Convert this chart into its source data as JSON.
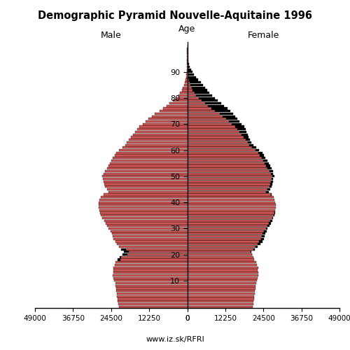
{
  "title": "Demographic Pyramid Nouvelle-Aquitaine 1996",
  "male_label": "Male",
  "female_label": "Female",
  "age_label": "Age",
  "website": "www.iz.sk/RFRI",
  "xlim": 49000,
  "bar_color": "#CC5555",
  "bar_edgecolor": "#000000",
  "background_color": "#ffffff",
  "ages": [
    0,
    1,
    2,
    3,
    4,
    5,
    6,
    7,
    8,
    9,
    10,
    11,
    12,
    13,
    14,
    15,
    16,
    17,
    18,
    19,
    20,
    21,
    22,
    23,
    24,
    25,
    26,
    27,
    28,
    29,
    30,
    31,
    32,
    33,
    34,
    35,
    36,
    37,
    38,
    39,
    40,
    41,
    42,
    43,
    44,
    45,
    46,
    47,
    48,
    49,
    50,
    51,
    52,
    53,
    54,
    55,
    56,
    57,
    58,
    59,
    60,
    61,
    62,
    63,
    64,
    65,
    66,
    67,
    68,
    69,
    70,
    71,
    72,
    73,
    74,
    75,
    76,
    77,
    78,
    79,
    80,
    81,
    82,
    83,
    84,
    85,
    86,
    87,
    88,
    89,
    90,
    91,
    92,
    93,
    94,
    95,
    96,
    97,
    98,
    99,
    100
  ],
  "male": [
    22000,
    22200,
    22400,
    22500,
    22600,
    22700,
    22800,
    22900,
    23000,
    23100,
    23500,
    23700,
    23900,
    23800,
    23700,
    23800,
    23400,
    23100,
    22400,
    21800,
    20800,
    20300,
    21200,
    22000,
    22600,
    23100,
    23700,
    24000,
    24300,
    24600,
    25300,
    25800,
    26300,
    26800,
    27300,
    27900,
    28100,
    28300,
    28500,
    28600,
    28400,
    28200,
    27900,
    26900,
    25400,
    25900,
    26400,
    26700,
    26900,
    27100,
    27400,
    26900,
    26400,
    25900,
    25400,
    24900,
    24400,
    23900,
    23400,
    22900,
    21900,
    20900,
    19900,
    19400,
    18900,
    18100,
    17400,
    16700,
    16100,
    15400,
    14400,
    13400,
    12400,
    11400,
    10400,
    8900,
    7700,
    6700,
    5700,
    4700,
    3700,
    2900,
    2300,
    1800,
    1400,
    1100,
    850,
    600,
    420,
    280,
    180,
    120,
    75,
    45,
    28,
    16,
    9,
    5,
    2,
    1,
    0
  ],
  "female": [
    21000,
    21200,
    21400,
    21500,
    21600,
    21700,
    21800,
    21900,
    22000,
    22100,
    22500,
    22700,
    22900,
    22800,
    22700,
    22800,
    22400,
    22100,
    21600,
    21400,
    20900,
    20700,
    21700,
    22700,
    23500,
    24200,
    24700,
    24900,
    25200,
    25500,
    25900,
    26500,
    26900,
    27300,
    27700,
    28100,
    28200,
    28300,
    28400,
    28500,
    28300,
    28100,
    27900,
    27200,
    26200,
    26700,
    27100,
    27300,
    27500,
    27700,
    28000,
    27700,
    27500,
    27200,
    26700,
    26200,
    25700,
    25200,
    24700,
    24200,
    23200,
    22200,
    21200,
    20700,
    20200,
    19800,
    19400,
    19100,
    18700,
    18400,
    17400,
    16700,
    16100,
    15400,
    14700,
    13900,
    12900,
    11900,
    10900,
    9900,
    8900,
    7900,
    7100,
    6400,
    5700,
    5100,
    4300,
    3600,
    2900,
    2200,
    1650,
    1150,
    800,
    550,
    360,
    215,
    130,
    75,
    42,
    20,
    9
  ],
  "age_ticks": [
    10,
    20,
    30,
    40,
    50,
    60,
    70,
    80,
    90
  ],
  "xtick_vals": [
    49000,
    36750,
    24500,
    12250,
    0
  ]
}
